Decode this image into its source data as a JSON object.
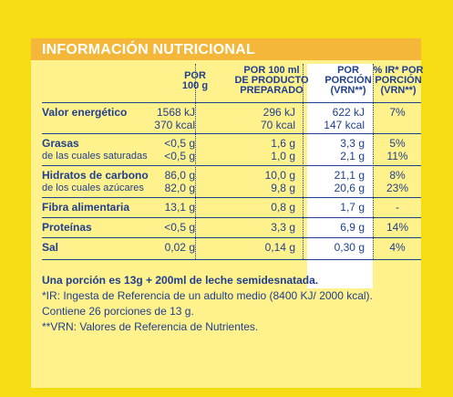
{
  "title": "INFORMACIÓN NUTRICIONAL",
  "headers": {
    "per100g": [
      "POR",
      "100 g"
    ],
    "per100ml": [
      "POR 100 ml",
      "DE PRODUCTO",
      "PREPARADO"
    ],
    "portion": [
      "POR",
      "PORCIÓN",
      "(VRN**)"
    ],
    "ir": [
      "% IR* POR",
      "PORCIÓN",
      "(VRN**)"
    ]
  },
  "rows": [
    {
      "label": "Valor energético",
      "sub": "",
      "per100g": [
        "1568 kJ",
        "370 kcal"
      ],
      "per100ml": [
        "296 kJ",
        "70 kcal"
      ],
      "portion": [
        "622 kJ",
        "147 kcal"
      ],
      "ir": [
        "7%"
      ]
    },
    {
      "label": "Grasas",
      "sub": "de las cuales saturadas",
      "per100g": [
        "<0,5 g",
        "<0,5 g"
      ],
      "per100ml": [
        "1,6 g",
        "1,0 g"
      ],
      "portion": [
        "3,3 g",
        "2,1 g"
      ],
      "ir": [
        "5%",
        "11%"
      ]
    },
    {
      "label": "Hidratos de carbono",
      "sub": "de los cuales azúcares",
      "per100g": [
        "86,0 g",
        "82,0 g"
      ],
      "per100ml": [
        "10,0 g",
        "9,8 g"
      ],
      "portion": [
        "21,1 g",
        "20,6 g"
      ],
      "ir": [
        "8%",
        "23%"
      ]
    },
    {
      "label": "Fibra alimentaria",
      "sub": "",
      "per100g": [
        "13,1 g"
      ],
      "per100ml": [
        "0,8 g"
      ],
      "portion": [
        "1,7 g"
      ],
      "ir": [
        "-"
      ]
    },
    {
      "label": "Proteínas",
      "sub": "",
      "per100g": [
        "<0,5 g"
      ],
      "per100ml": [
        "3,3 g"
      ],
      "portion": [
        "6,9 g"
      ],
      "ir": [
        "14%"
      ]
    },
    {
      "label": "Sal",
      "sub": "",
      "per100g": [
        "0,02 g"
      ],
      "per100ml": [
        "0,14 g"
      ],
      "portion": [
        "0,30 g"
      ],
      "ir": [
        "4%"
      ]
    }
  ],
  "notes": {
    "portion": "Una porción es 13g + 200ml de leche semidesnatada.",
    "ir": "*IR: Ingesta de Referencia de un adulto medio (8400 KJ/ 2000 kcal).",
    "count": "Contiene 26 porciones de 13 g.",
    "vrn": "**VRN: Valores de Referencia de Nutrientes."
  }
}
